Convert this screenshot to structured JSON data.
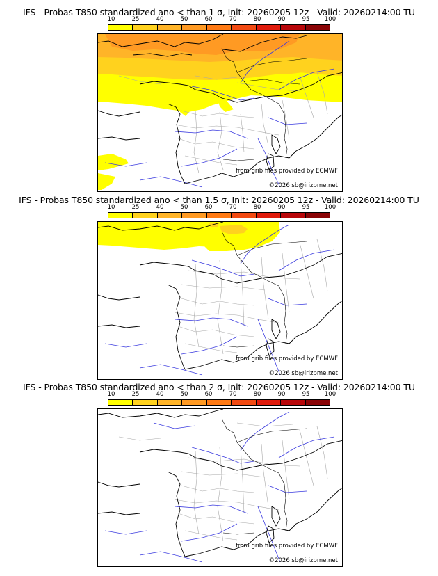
{
  "panels": [
    {
      "title": "IFS - Probas T850  standardized ano < than 1 σ, Init: 20260205 12z - Valid: 20260214:00 TU",
      "credit_source": "from grib files provided by ECMWF",
      "credit_copyright": "©2026 sb@irizpme.net"
    },
    {
      "title": "IFS - Probas T850  standardized ano < than 1.5 σ, Init: 20260205 12z - Valid: 20260214:00 TU",
      "credit_source": "from grib files provided by ECMWF",
      "credit_copyright": "©2026 sb@irizpme.net"
    },
    {
      "title": "IFS - Probas T850  standardized ano < than 2 σ, Init: 20260205 12z - Valid: 20260214:00 TU",
      "credit_source": "from grib files provided by ECMWF",
      "credit_copyright": "©2026 sb@irizpme.net"
    }
  ],
  "colorscale": {
    "labels": [
      "10",
      "25",
      "40",
      "50",
      "60",
      "70",
      "80",
      "90",
      "95",
      "100"
    ],
    "colors": [
      "#ffff00",
      "#ffd21e",
      "#ffb428",
      "#ff9a23",
      "#ff7a14",
      "#f24a12",
      "#e01b0c",
      "#b8070a",
      "#8a0406"
    ]
  },
  "colors": {
    "coast": "#000000",
    "rivers": "#3a3adf",
    "regions": "#a8a8a8",
    "prob_10": "#ffff00",
    "prob_25": "#ffd21e",
    "prob_40": "#ffb428",
    "prob_50": "#ff9a23"
  }
}
